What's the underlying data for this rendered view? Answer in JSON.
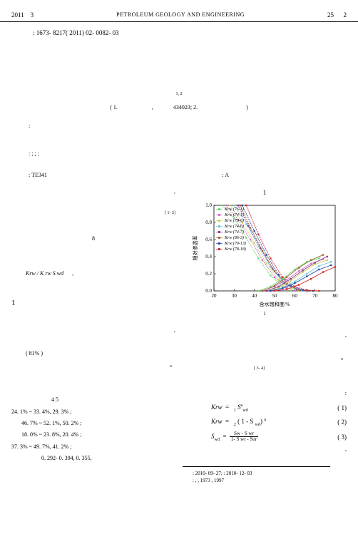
{
  "header": {
    "year": "2011",
    "month": "3",
    "journal": "PETROLEUM GEOLOGY AND ENGINEERING",
    "vol": "25",
    "issue": "2"
  },
  "doi": ": 1673- 8217( 2011) 02- 0082- 03",
  "authorsup": "1, 2",
  "affil": {
    "open": "( 1.",
    "comma": ",",
    "mid": "434023; 2.",
    "close": ")"
  },
  "kw": {
    "colon1": ":",
    "sep": ":   ;         ;       ;"
  },
  "classrow": {
    "left": ": TE341",
    "right": ": A"
  },
  "left": {
    "ref1": "[ 1- 2]",
    "num8": "8",
    "formula": "Krw / K rw     S wd",
    "sec1": "1",
    "pct": "( 81% )",
    "line1a": "4    5",
    "line1": "24. 1% ~ 33. 4%,          29. 3% ;",
    "line2": "46. 7% ~ 52. 1%,       50. 2% ;",
    "line3": "18. 0% ~ 23. 8%,          20. 4% ;",
    "line4": "37. 3% ~ 49. 7%,        41. 2% ;",
    "line5": "0. 292- 0. 394,       0. 355,",
    "comma": ","
  },
  "right": {
    "chart_title": "1",
    "ylabel": "相对渗透率",
    "xlabel": "含水饱和度/%",
    "caption": "1",
    "ref2": "[ 3- 4]",
    "eq1": {
      "lhs": "Krw",
      "eq": "=",
      "rhs": "S",
      "sub": "wd",
      "sup": "a",
      "pre": "1",
      "num": "( 1)"
    },
    "eq2": {
      "lhs": "Krw",
      "eq": "=",
      "pre": "2",
      "open": "( 1 -   S",
      "sub": "wd",
      "close": ")",
      "sup": "a",
      "num": "( 2)"
    },
    "eq3": {
      "lhs": "S",
      "lsub": "wd",
      "eq": "=",
      "num_t": "Sw -  S wr",
      "num_b": "1-  S wr -  Sor",
      "num": "( 3)"
    },
    "comma": ",",
    "period": "。",
    "foot1": ": 2010- 09- 27;            : 2010- 12- 03",
    "foot2": ":           ,        , 1973    , 1997"
  },
  "chart": {
    "type": "line",
    "background_color": "#ffffff",
    "border_color": "#000000",
    "xlim": [
      20,
      80
    ],
    "xticks": [
      20,
      30,
      40,
      50,
      60,
      70,
      80
    ],
    "ylim": [
      0,
      1.0
    ],
    "yticks": [
      0,
      0.2,
      0.4,
      0.6,
      0.8,
      1.0
    ],
    "label_fontsize": 7,
    "legend_fontsize": 6,
    "legend_pos": "upper-left",
    "legend": [
      {
        "label": "Krw (76-1)",
        "color": "#6fd86f",
        "marker": "square"
      },
      {
        "label": "Krw (74-1)",
        "color": "#d96fc8",
        "marker": "square"
      },
      {
        "label": "Krw (79-6)",
        "color": "#cfcf5a",
        "marker": "triangle"
      },
      {
        "label": "Krw (74-6)",
        "color": "#6fc8d9",
        "marker": "x"
      },
      {
        "label": "Krw (74-7)",
        "color": "#8a3a8a",
        "marker": "star"
      },
      {
        "label": "Krw (86-3)",
        "color": "#9a6a3a",
        "marker": "circle"
      },
      {
        "label": "Krw (79-13)",
        "color": "#2a4aa8",
        "marker": "plus"
      },
      {
        "label": "Krw (78-18)",
        "color": "#d02a2a",
        "marker": "diamond"
      }
    ],
    "kro_curves": [
      {
        "color": "#6fd86f",
        "pts": [
          [
            24,
            1.0
          ],
          [
            30,
            0.85
          ],
          [
            36,
            0.62
          ],
          [
            42,
            0.38
          ],
          [
            48,
            0.18
          ],
          [
            54,
            0.05
          ],
          [
            58,
            0.0
          ]
        ]
      },
      {
        "color": "#d96fc8",
        "pts": [
          [
            26,
            1.0
          ],
          [
            32,
            0.83
          ],
          [
            38,
            0.6
          ],
          [
            44,
            0.36
          ],
          [
            50,
            0.16
          ],
          [
            56,
            0.04
          ],
          [
            60,
            0.0
          ]
        ]
      },
      {
        "color": "#cfcf5a",
        "pts": [
          [
            28,
            1.0
          ],
          [
            34,
            0.8
          ],
          [
            40,
            0.56
          ],
          [
            46,
            0.32
          ],
          [
            52,
            0.13
          ],
          [
            58,
            0.03
          ],
          [
            62,
            0.0
          ]
        ]
      },
      {
        "color": "#6fc8d9",
        "pts": [
          [
            30,
            1.0
          ],
          [
            36,
            0.78
          ],
          [
            42,
            0.52
          ],
          [
            48,
            0.28
          ],
          [
            54,
            0.1
          ],
          [
            60,
            0.02
          ],
          [
            64,
            0.0
          ]
        ]
      },
      {
        "color": "#8a3a8a",
        "pts": [
          [
            32,
            1.0
          ],
          [
            37,
            0.76
          ],
          [
            43,
            0.5
          ],
          [
            49,
            0.26
          ],
          [
            55,
            0.09
          ],
          [
            61,
            0.02
          ],
          [
            66,
            0.0
          ]
        ]
      },
      {
        "color": "#9a6a3a",
        "pts": [
          [
            33,
            1.0
          ],
          [
            38,
            0.74
          ],
          [
            44,
            0.47
          ],
          [
            50,
            0.23
          ],
          [
            56,
            0.08
          ],
          [
            62,
            0.01
          ],
          [
            67,
            0.0
          ]
        ]
      },
      {
        "color": "#2a4aa8",
        "pts": [
          [
            34,
            1.0
          ],
          [
            40,
            0.7
          ],
          [
            46,
            0.42
          ],
          [
            52,
            0.19
          ],
          [
            58,
            0.06
          ],
          [
            64,
            0.01
          ],
          [
            69,
            0.0
          ]
        ]
      },
      {
        "color": "#d02a2a",
        "pts": [
          [
            36,
            1.0
          ],
          [
            42,
            0.66
          ],
          [
            48,
            0.38
          ],
          [
            54,
            0.16
          ],
          [
            60,
            0.05
          ],
          [
            66,
            0.01
          ],
          [
            72,
            0.0
          ]
        ]
      }
    ],
    "krw_curves": [
      {
        "color": "#6fd86f",
        "pts": [
          [
            42,
            0.0
          ],
          [
            48,
            0.05
          ],
          [
            54,
            0.14
          ],
          [
            60,
            0.25
          ],
          [
            66,
            0.34
          ],
          [
            72,
            0.38
          ]
        ]
      },
      {
        "color": "#d96fc8",
        "pts": [
          [
            44,
            0.0
          ],
          [
            50,
            0.05
          ],
          [
            56,
            0.13
          ],
          [
            62,
            0.23
          ],
          [
            68,
            0.32
          ],
          [
            74,
            0.37
          ]
        ]
      },
      {
        "color": "#cfcf5a",
        "pts": [
          [
            46,
            0.0
          ],
          [
            52,
            0.04
          ],
          [
            58,
            0.12
          ],
          [
            64,
            0.22
          ],
          [
            70,
            0.31
          ],
          [
            76,
            0.36
          ]
        ]
      },
      {
        "color": "#6fc8d9",
        "pts": [
          [
            48,
            0.0
          ],
          [
            54,
            0.04
          ],
          [
            60,
            0.11
          ],
          [
            66,
            0.2
          ],
          [
            72,
            0.29
          ],
          [
            78,
            0.34
          ]
        ]
      },
      {
        "color": "#8a3a8a",
        "pts": [
          [
            46,
            0.0
          ],
          [
            52,
            0.05
          ],
          [
            58,
            0.14
          ],
          [
            64,
            0.24
          ],
          [
            70,
            0.33
          ],
          [
            76,
            0.4
          ]
        ]
      },
      {
        "color": "#9a6a3a",
        "pts": [
          [
            44,
            0.0
          ],
          [
            50,
            0.06
          ],
          [
            56,
            0.16
          ],
          [
            62,
            0.27
          ],
          [
            68,
            0.36
          ],
          [
            74,
            0.42
          ]
        ]
      },
      {
        "color": "#2a4aa8",
        "pts": [
          [
            48,
            0.0
          ],
          [
            54,
            0.03
          ],
          [
            60,
            0.09
          ],
          [
            66,
            0.17
          ],
          [
            72,
            0.25
          ],
          [
            78,
            0.3
          ]
        ]
      },
      {
        "color": "#d02a2a",
        "pts": [
          [
            50,
            0.0
          ],
          [
            56,
            0.02
          ],
          [
            62,
            0.07
          ],
          [
            68,
            0.14
          ],
          [
            74,
            0.22
          ],
          [
            80,
            0.28
          ]
        ]
      }
    ]
  }
}
